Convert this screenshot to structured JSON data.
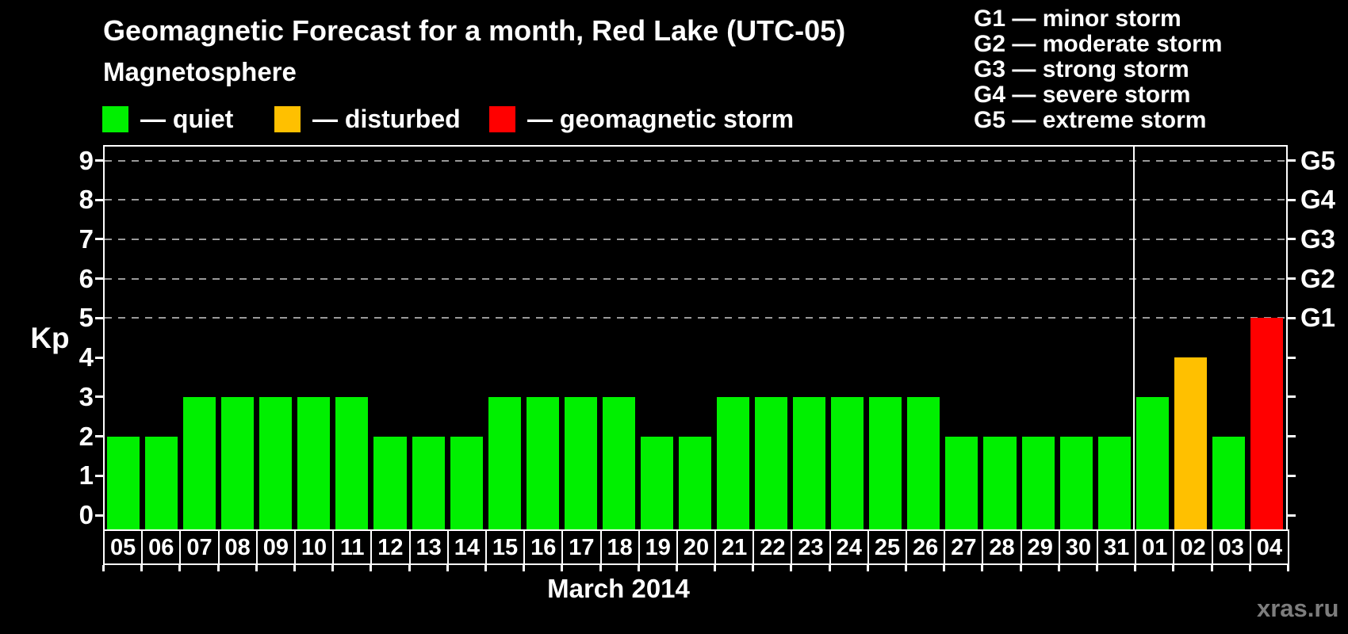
{
  "title": "Geomagnetic Forecast for a month, Red Lake (UTC-05)",
  "legend": {
    "heading": "Magnetosphere",
    "items": [
      {
        "key": "quiet",
        "label": "— quiet",
        "color": "#00F000"
      },
      {
        "key": "disturbed",
        "label": "— disturbed",
        "color": "#FFC000"
      },
      {
        "key": "storm",
        "label": "— geomagnetic storm",
        "color": "#FF0000"
      }
    ]
  },
  "g_scale": {
    "items": [
      "G1 — minor storm",
      "G2 — moderate storm",
      "G3 — strong storm",
      "G4 — severe storm",
      "G5 — extreme storm"
    ]
  },
  "chart_data": {
    "type": "bar",
    "title": "Geomagnetic Forecast for a month, Red Lake (UTC-05)",
    "ylabel": "Kp",
    "xlabel": "March 2014",
    "ylim": [
      0,
      9.4
    ],
    "yticks": [
      0,
      1,
      2,
      3,
      4,
      5,
      6,
      7,
      8,
      9
    ],
    "gridlines_at_kp": [
      5,
      6,
      7,
      8,
      9
    ],
    "grid": "dashed-horizontal",
    "legend_position": "top",
    "right_axis": {
      "labels": [
        "G1",
        "G2",
        "G3",
        "G4",
        "G5"
      ],
      "at_kp": [
        5,
        6,
        7,
        8,
        9
      ]
    },
    "month_separator_after_index": 26,
    "categories": [
      "05",
      "06",
      "07",
      "08",
      "09",
      "10",
      "11",
      "12",
      "13",
      "14",
      "15",
      "16",
      "17",
      "18",
      "19",
      "20",
      "21",
      "22",
      "23",
      "24",
      "25",
      "26",
      "27",
      "28",
      "29",
      "30",
      "31",
      "01",
      "02",
      "03",
      "04"
    ],
    "series": [
      {
        "name": "Kp forecast",
        "values": [
          2,
          2,
          3,
          3,
          3,
          3,
          3,
          2,
          2,
          2,
          3,
          3,
          3,
          3,
          2,
          2,
          3,
          3,
          3,
          3,
          3,
          3,
          2,
          2,
          2,
          2,
          2,
          3,
          4,
          2,
          5
        ],
        "statuses": [
          "quiet",
          "quiet",
          "quiet",
          "quiet",
          "quiet",
          "quiet",
          "quiet",
          "quiet",
          "quiet",
          "quiet",
          "quiet",
          "quiet",
          "quiet",
          "quiet",
          "quiet",
          "quiet",
          "quiet",
          "quiet",
          "quiet",
          "quiet",
          "quiet",
          "quiet",
          "quiet",
          "quiet",
          "quiet",
          "quiet",
          "quiet",
          "quiet",
          "disturbed",
          "quiet",
          "storm"
        ]
      }
    ],
    "status_colors": {
      "quiet": "#00F000",
      "disturbed": "#FFC000",
      "storm": "#FF0000"
    }
  },
  "footer": {
    "xaxis_title": "March 2014",
    "watermark": "xras.ru"
  }
}
